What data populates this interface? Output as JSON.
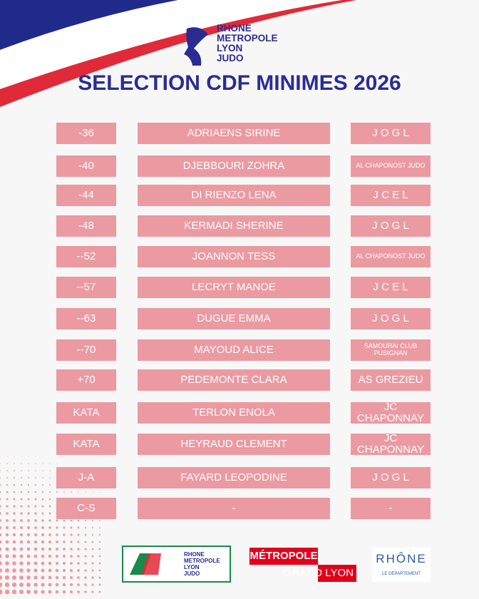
{
  "header": {
    "logo": [
      "RHONE",
      "METROPOLE",
      "LYON",
      "JUDO"
    ],
    "title": "SELECTION CDF MINIMES 2026"
  },
  "table": {
    "rows": [
      [
        "-36",
        "ADRIAENS SIRINE",
        "J O G L"
      ],
      [
        "-40",
        "DJEBBOURI ZOHRA",
        "AL CHAPONOST JUDO"
      ],
      [
        "-44",
        "DI RIENZO LENA",
        "J C E L"
      ],
      [
        "-48",
        "KERMADI SHERINE",
        "J O G L"
      ],
      [
        "--52",
        "JOANNON TESS",
        "AL CHAPONOST JUDO"
      ],
      [
        "--57",
        "LECRYT MANOE",
        "J C E L"
      ],
      [
        "--63",
        "DUGUE EMMA",
        "J O G L"
      ],
      [
        "--70",
        "MAYOUD ALICE",
        "SAMOURAI CLUB PUSIGNAN"
      ],
      [
        "+70",
        "PEDEMONTE CLARA",
        "AS GREZIEU"
      ],
      [
        "KATA",
        "TERLON ENOLA",
        "JC CHAPONNAY"
      ],
      [
        "KATA",
        "HEYRAUD CLEMENT",
        "JC CHAPONNAY"
      ],
      [
        "J-A",
        "FAYARD LEOPODINE",
        "J O G L"
      ],
      [
        "C-S",
        "-",
        "-"
      ]
    ]
  },
  "footer": {
    "club_logo": [
      "RHONE",
      "METROPOLE",
      "LYON",
      "JUDO"
    ],
    "metropole": [
      "MÉTROPOLE",
      "GRAND LYON"
    ],
    "rhone": [
      "RHÔNE",
      "LE DÉPARTEMENT"
    ]
  }
}
